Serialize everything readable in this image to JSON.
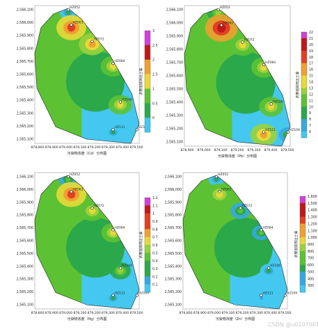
{
  "watermark": "CSDN @u010700129",
  "chart_data": [
    {
      "type": "heatmap",
      "xlabel": "污染物浓度（Cd）分布图",
      "ylabel": "武警医院周边土壤",
      "x_ticks": [
        "878,800",
        "878,900",
        "879,000",
        "879,100",
        "879,200",
        "879,300",
        "879,400",
        "879,500"
      ],
      "y_ticks": [
        "2,566,100",
        "2,566,000",
        "2,565,900",
        "2,565,800",
        "2,565,700",
        "2,565,600",
        "2,565,500",
        "2,565,400",
        "2,565,300",
        "2,565,200",
        "2,565,100"
      ],
      "legend_levels": [
        "3",
        "2.5",
        "2",
        "1.5",
        "1",
        "0.5",
        "0"
      ],
      "colors": [
        "#44c8f0",
        "#36a8e0",
        "#2aa84a",
        "#5cc234",
        "#9ad13c",
        "#e8d93a",
        "#f0a030",
        "#e04024",
        "#c01818",
        "#d040d8"
      ],
      "stations": [
        "HZ052",
        "HZ061",
        "HZ072",
        "HZ084",
        "HZ100",
        "HZ111",
        "HZ109"
      ],
      "bands": [
        0.25,
        0.75,
        0.62,
        0.55,
        0.5,
        0.18,
        0.12
      ]
    },
    {
      "type": "heatmap",
      "xlabel": "污染物浓度（Pb）分布图",
      "ylabel": "武警医院周边土壤",
      "x_ticks": [
        "878,900",
        "879,000",
        "879,100",
        "879,200",
        "879,300",
        "879,400",
        "879,500"
      ],
      "y_ticks": [
        "2,566,100",
        "2,566,000",
        "2,565,900",
        "2,565,800",
        "2,565,700",
        "2,565,600",
        "2,565,500",
        "2,565,400",
        "2,565,300",
        "2,565,200",
        "2,565,100"
      ],
      "legend_levels": [
        "22",
        "21",
        "20",
        "19",
        "18",
        "17",
        "16",
        "15",
        "14",
        "13",
        "12",
        "11",
        "10",
        "9",
        "8",
        "7",
        "6"
      ],
      "colors": [
        "#44c8f0",
        "#36a8e0",
        "#2aa84a",
        "#5cc234",
        "#9ad13c",
        "#e8d93a",
        "#f0a030",
        "#e04024",
        "#c01818",
        "#d040d8"
      ],
      "stations": [
        "HZ052",
        "HZ061",
        "HZ072",
        "HZ084",
        "HZ100",
        "HZ111",
        "HZ109"
      ],
      "bands": [
        0.45,
        0.85,
        0.6,
        0.55,
        0.52,
        0.62,
        0.3
      ]
    },
    {
      "type": "heatmap",
      "xlabel": "污染物浓度（Hg）分布图",
      "ylabel": "武警医院周边土壤",
      "x_ticks": [
        "878,800",
        "878,900",
        "879,000",
        "879,100",
        "879,200",
        "879,300",
        "879,400",
        "879,500"
      ],
      "y_ticks": [
        "2,566,100",
        "2,566,000",
        "2,565,900",
        "2,565,800",
        "2,565,700",
        "2,565,600",
        "2,565,500",
        "2,565,400",
        "2,565,300",
        "2,565,200",
        "2,565,100"
      ],
      "legend_levels": [
        "1.2",
        "1.1",
        "1",
        "0.9",
        "0.8",
        "0.7",
        "0.6",
        "0.5",
        "0.4",
        "0.3",
        "0.2",
        "0.1"
      ],
      "colors": [
        "#44c8f0",
        "#36a8e0",
        "#2aa84a",
        "#5cc234",
        "#9ad13c",
        "#e8d93a",
        "#f0a030",
        "#e04024",
        "#c01818",
        "#d040d8"
      ],
      "stations": [
        "HZ052",
        "HZ061",
        "HZ072",
        "HZ084",
        "HZ100",
        "HZ111",
        "HZ109"
      ],
      "bands": [
        0.3,
        0.75,
        0.55,
        0.5,
        0.4,
        0.2,
        0.12
      ]
    },
    {
      "type": "heatmap",
      "xlabel": "污染物浓度（Zn）分布图",
      "ylabel": "武警医院周边土壤",
      "x_ticks": [
        "878,800",
        "878,900",
        "879,000",
        "879,100",
        "879,200",
        "879,300",
        "879,400",
        "879,500"
      ],
      "y_ticks": [
        "2,566,100",
        "2,566,000",
        "2,565,900",
        "2,565,800",
        "2,565,700",
        "2,565,600",
        "2,565,500",
        "2,565,400",
        "2,565,300",
        "2,565,200",
        "2,565,100"
      ],
      "legend_levels": [
        "1,600",
        "1,500",
        "1,400",
        "1,300",
        "1,200",
        "1,100",
        "1,000",
        "900",
        "800",
        "700",
        "600",
        "500",
        "400",
        "300"
      ],
      "colors": [
        "#44c8f0",
        "#36a8e0",
        "#2aa84a",
        "#5cc234",
        "#9ad13c",
        "#e8d93a",
        "#f0a030",
        "#e04024",
        "#c01818",
        "#d040d8"
      ],
      "stations": [
        "HZ052",
        "HZ061",
        "HZ072",
        "HZ084",
        "HZ100",
        "HZ111",
        "HZ109"
      ],
      "bands": [
        0.2,
        0.6,
        0.35,
        0.3,
        0.25,
        0.15,
        0.1
      ]
    }
  ]
}
